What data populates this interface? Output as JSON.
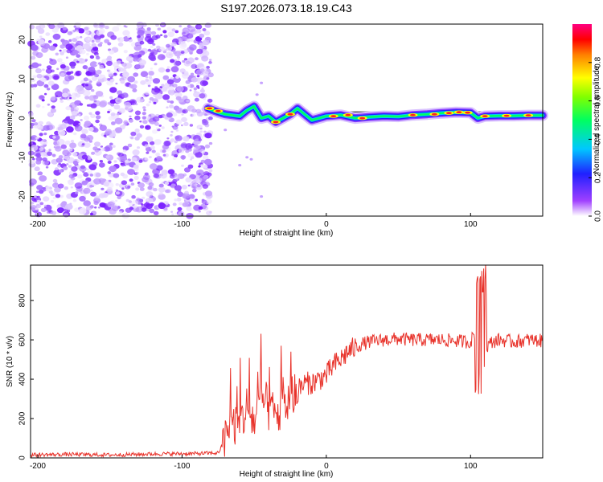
{
  "chart_data": [
    {
      "type": "heatmap",
      "title": "S197.2026.073.18.19.C43",
      "xlabel": "Height of straight line (km)",
      "ylabel": "Frequency (Hz)",
      "xlim": [
        -205,
        150
      ],
      "ylim": [
        -25,
        24
      ],
      "xticks": [
        -200,
        -100,
        0,
        100
      ],
      "xtick_labels": [
        "-200",
        "-100",
        "0",
        "100"
      ],
      "yticks": [
        -20,
        -10,
        0,
        10,
        20
      ],
      "ytick_labels": [
        "-20",
        "-10",
        "0",
        "10",
        "20"
      ],
      "noise_region_x": [
        -205,
        -80
      ],
      "signal_trace": {
        "x": [
          -82,
          -75,
          -70,
          -60,
          -55,
          -50,
          -45,
          -40,
          -35,
          -30,
          -25,
          -20,
          -15,
          -10,
          -5,
          0,
          10,
          20,
          30,
          40,
          50,
          60,
          70,
          80,
          90,
          100,
          105,
          110,
          120,
          130,
          140,
          150
        ],
        "freq": [
          2.5,
          1.5,
          1.0,
          0.5,
          2.0,
          3.0,
          0.0,
          0.5,
          -1.0,
          0.0,
          1.0,
          2.5,
          1.0,
          -0.5,
          0.0,
          0.5,
          0.8,
          0.0,
          0.3,
          0.5,
          0.4,
          0.8,
          1.0,
          1.3,
          1.5,
          1.4,
          0.0,
          0.5,
          0.6,
          0.6,
          0.7,
          0.7
        ]
      },
      "colorbar": {
        "label": "Normalized spectral amplitude",
        "range": [
          0,
          1
        ],
        "ticks": [
          0.0,
          0.2,
          0.4,
          0.6,
          0.8
        ],
        "tick_labels": [
          "0.0",
          "0.2",
          "0.4",
          "0.6",
          "0.8"
        ]
      }
    },
    {
      "type": "line",
      "xlabel": "Height of straight line (km)",
      "ylabel": "SNR (10 * v/v)",
      "xlim": [
        -205,
        150
      ],
      "ylim": [
        0,
        980
      ],
      "xticks": [
        -200,
        -100,
        0,
        100
      ],
      "xtick_labels": [
        "-200",
        "-100",
        "0",
        "100"
      ],
      "yticks": [
        0,
        200,
        400,
        600,
        800
      ],
      "ytick_labels": [
        "0",
        "200",
        "400",
        "600",
        "800"
      ],
      "line_color": "#e8322a",
      "series": [
        {
          "name": "SNR",
          "x": [
            -205,
            -180,
            -150,
            -120,
            -90,
            -75,
            -70,
            -65,
            -60,
            -55,
            -50,
            -45,
            -40,
            -35,
            -30,
            -25,
            -20,
            -15,
            -10,
            -5,
            0,
            5,
            10,
            15,
            20,
            25,
            30,
            40,
            50,
            60,
            70,
            80,
            90,
            100,
            103,
            106,
            108,
            110,
            115,
            120,
            130,
            140,
            150
          ],
          "values": [
            15,
            18,
            15,
            20,
            22,
            25,
            90,
            180,
            160,
            260,
            180,
            300,
            250,
            210,
            250,
            300,
            340,
            380,
            380,
            400,
            420,
            470,
            500,
            540,
            560,
            580,
            590,
            600,
            605,
            600,
            600,
            600,
            595,
            590,
            640,
            520,
            600,
            560,
            590,
            600,
            590,
            600,
            595
          ]
        }
      ],
      "spikes": [
        {
          "x": 107,
          "max": 980,
          "min": 320
        }
      ]
    }
  ]
}
